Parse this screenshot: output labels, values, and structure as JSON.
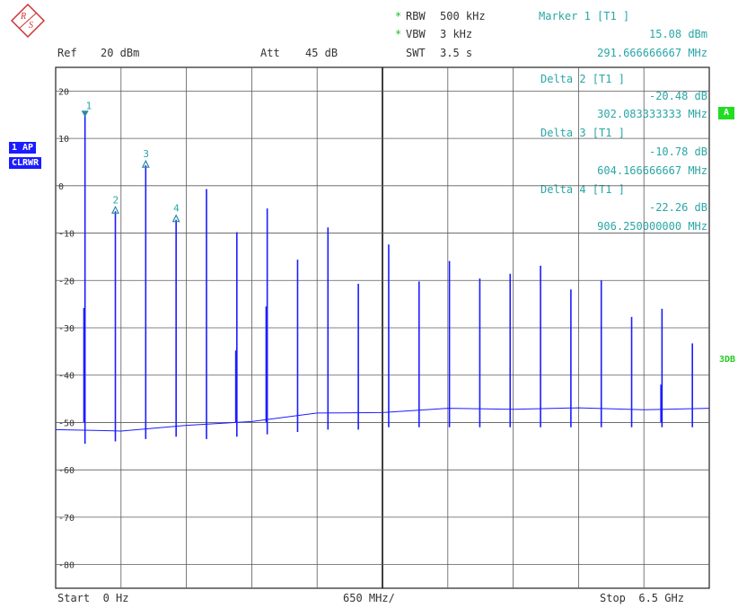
{
  "header": {
    "ref_label": "Ref",
    "ref_value": "20 dBm",
    "att_label": "Att",
    "att_value": "45 dB",
    "rbw_label": "RBW",
    "rbw_value": "500 kHz",
    "vbw_label": "VBW",
    "vbw_value": "3 kHz",
    "swt_label": "SWT",
    "swt_value": "3.5 s",
    "star": "*"
  },
  "markers": {
    "m1_title": "Marker 1 [T1 ]",
    "m1_level": "15.08 dBm",
    "m1_freq": "291.666666667 MHz",
    "d2_title": "Delta 2 [T1 ]",
    "d2_level": "-20.48 dB",
    "d2_freq": "302.083333333 MHz",
    "d3_title": "Delta 3 [T1 ]",
    "d3_level": "-10.78 dB",
    "d3_freq": "604.166666667 MHz",
    "d4_title": "Delta 4 [T1 ]",
    "d4_level": "-22.26 dB",
    "d4_freq": "906.250000000 MHz"
  },
  "side_tags": {
    "trace_ap": "1 AP",
    "trace_mode": "CLRWR",
    "limit_a": "A",
    "limit_3db": "3DB"
  },
  "footer": {
    "start": "Start  0 Hz",
    "span_div": "650 MHz/",
    "stop": "Stop  6.5 GHz"
  },
  "colors": {
    "trace": "#1c1cff",
    "grid": "#5a5a5a",
    "marker": "#2a8aa0"
  },
  "chart_data": {
    "type": "line",
    "x_unit": "MHz",
    "y_unit": "dBm",
    "xlim": [
      0,
      6500
    ],
    "ylim": [
      -85,
      25
    ],
    "y_ticks": [
      "20",
      "10",
      "0",
      "-10",
      "-20",
      "-30",
      "-40",
      "-50",
      "-60",
      "-70",
      "-80"
    ],
    "y_tick_values": [
      20,
      10,
      0,
      -10,
      -20,
      -30,
      -40,
      -50,
      -60,
      -70,
      -80
    ],
    "noise_floor": [
      {
        "x": 0,
        "y": -51.5
      },
      {
        "x": 650,
        "y": -51.8
      },
      {
        "x": 1300,
        "y": -50.6
      },
      {
        "x": 1950,
        "y": -49.8
      },
      {
        "x": 2600,
        "y": -48.0
      },
      {
        "x": 3250,
        "y": -47.9
      },
      {
        "x": 3900,
        "y": -47.0
      },
      {
        "x": 4550,
        "y": -47.2
      },
      {
        "x": 5200,
        "y": -46.9
      },
      {
        "x": 5850,
        "y": -47.3
      },
      {
        "x": 6500,
        "y": -47.0
      }
    ],
    "spurs": [
      {
        "x": 291.7,
        "top": 15.1,
        "bottom": -54.5
      },
      {
        "x": 593.8,
        "top": -5.4,
        "bottom": -54.0
      },
      {
        "x": 895.8,
        "top": 4.3,
        "bottom": -53.5
      },
      {
        "x": 1197.9,
        "top": -7.2,
        "bottom": -53.0
      },
      {
        "x": 1500,
        "top": -0.7,
        "bottom": -53.5
      },
      {
        "x": 1802,
        "top": -9.8,
        "bottom": -53.0
      },
      {
        "x": 2104,
        "top": -4.8,
        "bottom": -52.5
      },
      {
        "x": 2406,
        "top": -15.6,
        "bottom": -52.0
      },
      {
        "x": 2708,
        "top": -8.8,
        "bottom": -51.5
      },
      {
        "x": 3010,
        "top": -20.7,
        "bottom": -51.5
      },
      {
        "x": 3312,
        "top": -12.4,
        "bottom": -51.0
      },
      {
        "x": 3614,
        "top": -20.2,
        "bottom": -51.0
      },
      {
        "x": 3916,
        "top": -15.9,
        "bottom": -51.0
      },
      {
        "x": 4218,
        "top": -19.6,
        "bottom": -51.0
      },
      {
        "x": 4520,
        "top": -18.6,
        "bottom": -51.0
      },
      {
        "x": 4822,
        "top": -16.9,
        "bottom": -51.0
      },
      {
        "x": 5124,
        "top": -21.9,
        "bottom": -51.0
      },
      {
        "x": 5426,
        "top": -20.0,
        "bottom": -51.0
      },
      {
        "x": 5728,
        "top": -27.7,
        "bottom": -51.0
      },
      {
        "x": 6030,
        "top": -26.0,
        "bottom": -51.0
      },
      {
        "x": 6332,
        "top": -33.3,
        "bottom": -51.0
      }
    ],
    "sub_spurs": [
      {
        "x": 291.7,
        "y": -25.8
      },
      {
        "x": 1802,
        "y": -34.8
      },
      {
        "x": 2104,
        "y": -25.5
      },
      {
        "x": 6030,
        "y": -42.0
      }
    ],
    "marker_points": [
      {
        "label": "1",
        "x": 291.7,
        "y": 15.08,
        "filled": true
      },
      {
        "label": "2",
        "x": 593.8,
        "y": -5.4,
        "filled": false
      },
      {
        "label": "3",
        "x": 895.8,
        "y": 4.3,
        "filled": false
      },
      {
        "label": "4",
        "x": 1197.9,
        "y": -7.18,
        "filled": false
      }
    ]
  }
}
